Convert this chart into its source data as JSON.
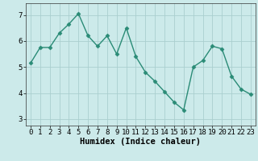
{
  "x": [
    0,
    1,
    2,
    3,
    4,
    5,
    6,
    7,
    8,
    9,
    10,
    11,
    12,
    13,
    14,
    15,
    16,
    17,
    18,
    19,
    20,
    21,
    22,
    23
  ],
  "y": [
    5.15,
    5.75,
    5.75,
    6.3,
    6.65,
    7.05,
    6.2,
    5.8,
    6.2,
    5.5,
    6.5,
    5.4,
    4.8,
    4.45,
    4.05,
    3.65,
    3.35,
    5.0,
    5.25,
    5.8,
    5.7,
    4.65,
    4.15,
    3.95
  ],
  "line_color": "#2a8b76",
  "marker": "D",
  "marker_size": 2.5,
  "bg_color": "#cceaea",
  "grid_color": "#aacfcf",
  "xlabel": "Humidex (Indice chaleur)",
  "xlim": [
    -0.5,
    23.5
  ],
  "ylim": [
    2.75,
    7.45
  ],
  "yticks": [
    3,
    4,
    5,
    6,
    7
  ],
  "xticks": [
    0,
    1,
    2,
    3,
    4,
    5,
    6,
    7,
    8,
    9,
    10,
    11,
    12,
    13,
    14,
    15,
    16,
    17,
    18,
    19,
    20,
    21,
    22,
    23
  ],
  "tick_fontsize": 6.5,
  "xlabel_fontsize": 7.5,
  "linewidth": 1.0
}
